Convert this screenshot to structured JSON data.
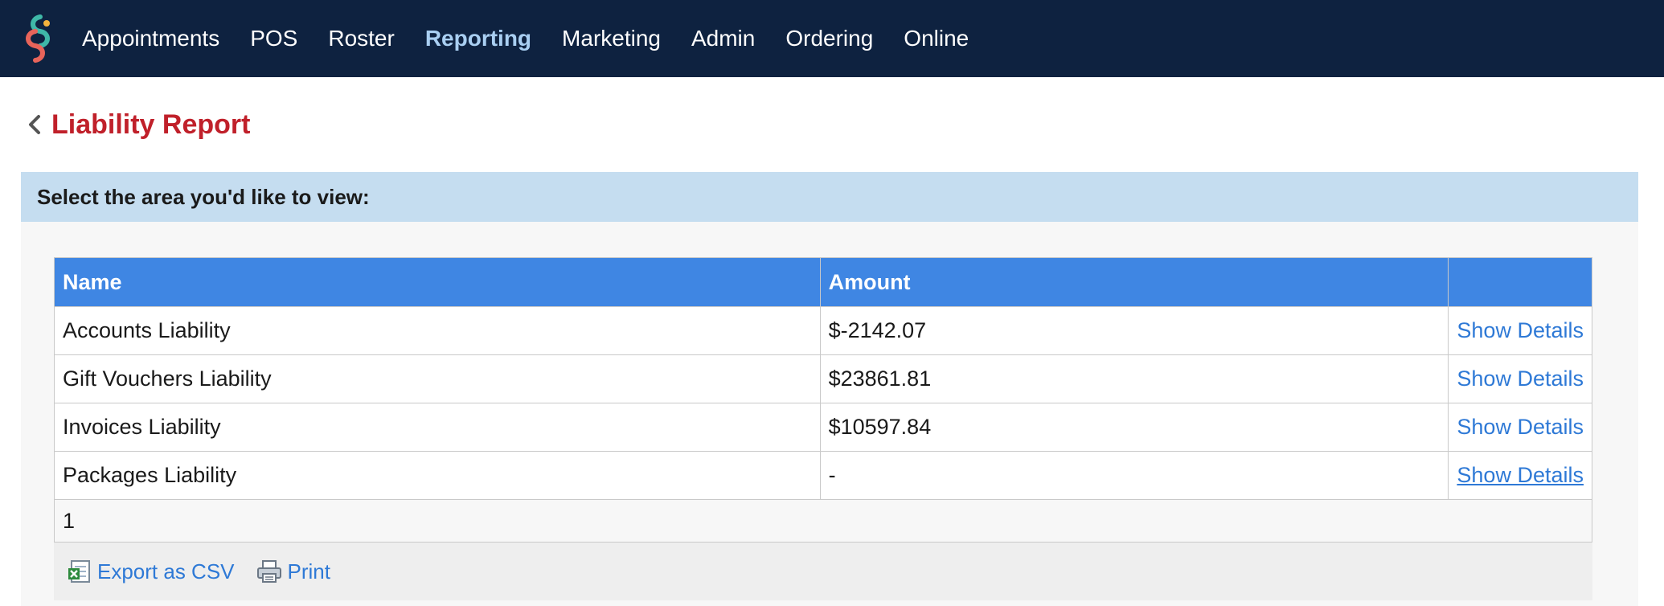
{
  "nav": {
    "items": [
      "Appointments",
      "POS",
      "Roster",
      "Reporting",
      "Marketing",
      "Admin",
      "Ordering",
      "Online"
    ],
    "active": "Reporting"
  },
  "page": {
    "title": "Liability Report"
  },
  "panel": {
    "header": "Select the area you'd like to view:"
  },
  "table": {
    "headers": [
      "Name",
      "Amount",
      ""
    ],
    "rows": [
      {
        "name": "Accounts Liability",
        "amount": "$-2142.07",
        "action": "Show Details"
      },
      {
        "name": "Gift Vouchers Liability",
        "amount": "$23861.81",
        "action": "Show Details"
      },
      {
        "name": "Invoices Liability",
        "amount": "$10597.84",
        "action": "Show Details"
      },
      {
        "name": "Packages Liability",
        "amount": "-",
        "action": "Show Details"
      }
    ],
    "page": "1"
  },
  "footer": {
    "export_label": "Export as CSV",
    "print_label": "Print"
  },
  "colors": {
    "nav_bg": "#0e2240",
    "title": "#c0202a",
    "table_header": "#3f86e3",
    "link": "#2e79d6",
    "panel_header": "#c5ddf0"
  }
}
